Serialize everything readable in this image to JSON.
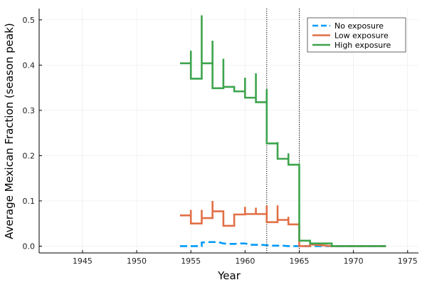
{
  "chart_data": {
    "type": "line",
    "title": "",
    "xlabel": "Year",
    "ylabel": "Average Mexican Fraction (season peak)",
    "xlim": [
      1941,
      1976
    ],
    "ylim": [
      -0.015,
      0.525
    ],
    "xticks": [
      1945,
      1950,
      1955,
      1960,
      1965,
      1970,
      1975
    ],
    "yticks": [
      0.0,
      0.1,
      0.2,
      0.3,
      0.4,
      0.5
    ],
    "ytick_labels": [
      "0.0",
      "0.1",
      "0.2",
      "0.3",
      "0.4",
      "0.5"
    ],
    "grid": true,
    "legend_position": "top-right",
    "vertical_lines": [
      1962,
      1965
    ],
    "series": [
      {
        "name": "No exposure",
        "color": "#009af9",
        "dash": "dashed",
        "points": [
          [
            1954,
            0.0
          ],
          [
            1954.5,
            0.0
          ],
          [
            1955,
            0.0
          ],
          [
            1955.5,
            0.0
          ],
          [
            1956,
            0.0
          ],
          [
            1956,
            0.008
          ],
          [
            1956.5,
            0.009
          ],
          [
            1957,
            0.009
          ],
          [
            1957.5,
            0.009
          ],
          [
            1958,
            0.006
          ],
          [
            1958.5,
            0.005
          ],
          [
            1959,
            0.005
          ],
          [
            1959.5,
            0.006
          ],
          [
            1960,
            0.006
          ],
          [
            1960.5,
            0.003
          ],
          [
            1961,
            0.003
          ],
          [
            1961.5,
            0.003
          ],
          [
            1962,
            0.002
          ],
          [
            1962.5,
            0.001
          ],
          [
            1963,
            0.001
          ],
          [
            1963.5,
            0.001
          ],
          [
            1964,
            0.0
          ],
          [
            1964.5,
            0.0
          ],
          [
            1965,
            0.0
          ],
          [
            1966,
            0.0
          ],
          [
            1967,
            0.0
          ],
          [
            1968,
            0.0
          ],
          [
            1969,
            0.0
          ],
          [
            1970,
            0.0
          ],
          [
            1971,
            0.0
          ],
          [
            1972,
            0.0
          ],
          [
            1973,
            0.0
          ]
        ]
      },
      {
        "name": "Low exposure",
        "color": "#e26f46",
        "dash": "solid",
        "points": [
          [
            1954,
            0.068
          ],
          [
            1955,
            0.068
          ],
          [
            1955,
            0.08
          ],
          [
            1955,
            0.05
          ],
          [
            1956,
            0.05
          ],
          [
            1956,
            0.08
          ],
          [
            1956,
            0.062
          ],
          [
            1957,
            0.062
          ],
          [
            1957,
            0.1
          ],
          [
            1957,
            0.077
          ],
          [
            1958,
            0.077
          ],
          [
            1958,
            0.045
          ],
          [
            1959,
            0.045
          ],
          [
            1959,
            0.07
          ],
          [
            1960,
            0.07
          ],
          [
            1960,
            0.087
          ],
          [
            1960,
            0.071
          ],
          [
            1961,
            0.071
          ],
          [
            1961,
            0.085
          ],
          [
            1961,
            0.071
          ],
          [
            1962,
            0.071
          ],
          [
            1962,
            0.09
          ],
          [
            1962,
            0.053
          ],
          [
            1963,
            0.053
          ],
          [
            1963,
            0.09
          ],
          [
            1963,
            0.058
          ],
          [
            1964,
            0.058
          ],
          [
            1964,
            0.065
          ],
          [
            1964,
            0.048
          ],
          [
            1965,
            0.048
          ],
          [
            1965,
            0.0
          ],
          [
            1966,
            0.0
          ],
          [
            1966,
            0.004
          ],
          [
            1968,
            0.0
          ],
          [
            1973,
            0.0
          ]
        ]
      },
      {
        "name": "High exposure",
        "color": "#3da44d",
        "dash": "solid",
        "points": [
          [
            1954,
            0.404
          ],
          [
            1955,
            0.404
          ],
          [
            1955,
            0.432
          ],
          [
            1955,
            0.37
          ],
          [
            1956,
            0.37
          ],
          [
            1956,
            0.51
          ],
          [
            1956,
            0.404
          ],
          [
            1957,
            0.404
          ],
          [
            1957,
            0.454
          ],
          [
            1957,
            0.349
          ],
          [
            1958,
            0.349
          ],
          [
            1958,
            0.414
          ],
          [
            1958,
            0.352
          ],
          [
            1959,
            0.352
          ],
          [
            1959,
            0.342
          ],
          [
            1960,
            0.342
          ],
          [
            1960,
            0.372
          ],
          [
            1960,
            0.328
          ],
          [
            1961,
            0.328
          ],
          [
            1961,
            0.382
          ],
          [
            1961,
            0.318
          ],
          [
            1962,
            0.318
          ],
          [
            1962,
            0.347
          ],
          [
            1962,
            0.227
          ],
          [
            1963,
            0.227
          ],
          [
            1963,
            0.23
          ],
          [
            1963,
            0.193
          ],
          [
            1964,
            0.193
          ],
          [
            1964,
            0.205
          ],
          [
            1964,
            0.18
          ],
          [
            1965,
            0.18
          ],
          [
            1965,
            0.012
          ],
          [
            1966,
            0.012
          ],
          [
            1966,
            0.006
          ],
          [
            1968,
            0.006
          ],
          [
            1968,
            0.0
          ],
          [
            1973,
            0.0
          ]
        ]
      }
    ]
  }
}
